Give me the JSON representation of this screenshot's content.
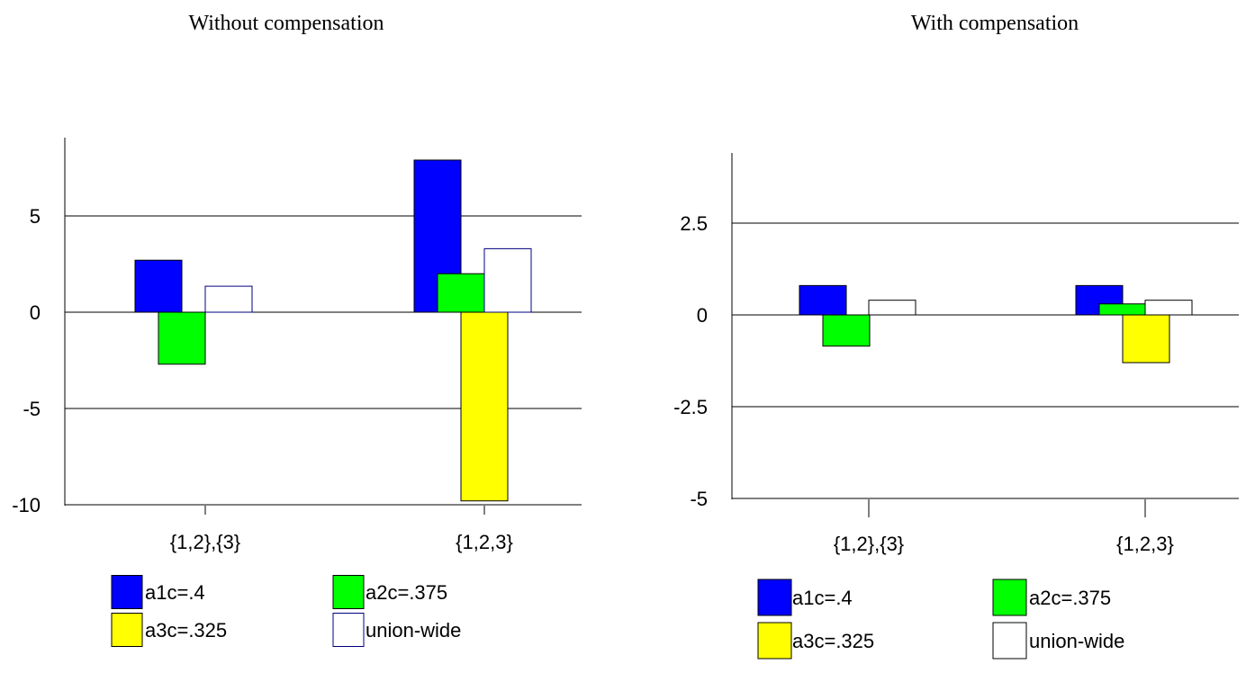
{
  "colors": {
    "a1c": "#0000ff",
    "a2c": "#00ff00",
    "a3c": "#ffff00",
    "union_left_stroke": "#000080",
    "union_right_stroke": "#000000"
  },
  "chart_data": [
    {
      "type": "bar",
      "title": "Without compensation",
      "categories": [
        "{1,2},{3}",
        "{1,2,3}"
      ],
      "series": [
        {
          "name": "a1c=.4",
          "values": [
            2.7,
            7.9
          ]
        },
        {
          "name": "a2c=.375",
          "values": [
            -2.7,
            2.0
          ]
        },
        {
          "name": "a3c=.325",
          "values": [
            0,
            -9.8
          ]
        },
        {
          "name": "union-wide",
          "values": [
            1.35,
            3.3
          ]
        }
      ],
      "yticks": [
        "5",
        "0",
        "-5",
        "-10"
      ],
      "ylim": [
        -10,
        9
      ],
      "grid": true,
      "legend": "bottom"
    },
    {
      "type": "bar",
      "title": "With compensation",
      "categories": [
        "{1,2},{3}",
        "{1,2,3}"
      ],
      "series": [
        {
          "name": "a1c=.4",
          "values": [
            0.8,
            0.8
          ]
        },
        {
          "name": "a2c=.375",
          "values": [
            -0.85,
            0.3
          ]
        },
        {
          "name": "a3c=.325",
          "values": [
            0,
            -1.3
          ]
        },
        {
          "name": "union-wide",
          "values": [
            0.4,
            0.4
          ]
        }
      ],
      "yticks": [
        "2.5",
        "0",
        "-2.5",
        "-5"
      ],
      "ylim": [
        -5,
        4.3
      ],
      "grid": true,
      "legend": "bottom"
    }
  ]
}
